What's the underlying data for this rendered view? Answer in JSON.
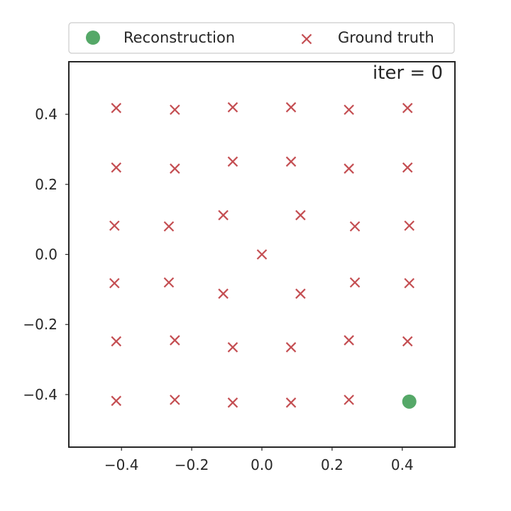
{
  "chart_data": {
    "type": "scatter",
    "title": "",
    "xlabel": "",
    "ylabel": "",
    "xlim": [
      -0.55,
      0.55
    ],
    "ylim": [
      -0.55,
      0.55
    ],
    "xticks": [
      -0.4,
      -0.2,
      0.0,
      0.2,
      0.4
    ],
    "yticks": [
      -0.4,
      -0.2,
      0.0,
      0.2,
      0.4
    ],
    "xtick_labels": [
      "−0.4",
      "−0.2",
      "0.0",
      "0.2",
      "0.4"
    ],
    "ytick_labels": [
      "−0.4",
      "−0.2",
      "0.0",
      "0.2",
      "0.4"
    ],
    "grid": false,
    "legend": {
      "placement": "top, above plot",
      "columns": 2
    },
    "annotation": "iter = 0",
    "series": [
      {
        "name": "Reconstruction",
        "marker": "circle",
        "color": "#55a868",
        "points": [
          [
            0.42,
            -0.42
          ]
        ]
      },
      {
        "name": "Ground truth",
        "marker": "x",
        "color": "#c44e52",
        "points": [
          [
            -0.415,
            0.418
          ],
          [
            -0.248,
            0.413
          ],
          [
            -0.083,
            0.42
          ],
          [
            0.083,
            0.42
          ],
          [
            0.248,
            0.413
          ],
          [
            0.415,
            0.418
          ],
          [
            -0.415,
            0.248
          ],
          [
            -0.248,
            0.245
          ],
          [
            -0.083,
            0.265
          ],
          [
            0.083,
            0.265
          ],
          [
            0.248,
            0.245
          ],
          [
            0.415,
            0.248
          ],
          [
            -0.42,
            0.082
          ],
          [
            -0.265,
            0.08
          ],
          [
            -0.11,
            0.112
          ],
          [
            0.11,
            0.112
          ],
          [
            0.265,
            0.08
          ],
          [
            0.42,
            0.082
          ],
          [
            0.0,
            0.0
          ],
          [
            -0.42,
            -0.082
          ],
          [
            -0.265,
            -0.08
          ],
          [
            -0.11,
            -0.112
          ],
          [
            0.11,
            -0.112
          ],
          [
            0.265,
            -0.08
          ],
          [
            0.42,
            -0.082
          ],
          [
            -0.415,
            -0.248
          ],
          [
            -0.248,
            -0.245
          ],
          [
            -0.083,
            -0.265
          ],
          [
            0.083,
            -0.265
          ],
          [
            0.248,
            -0.245
          ],
          [
            0.415,
            -0.248
          ],
          [
            -0.415,
            -0.418
          ],
          [
            -0.248,
            -0.415
          ],
          [
            -0.083,
            -0.423
          ],
          [
            0.083,
            -0.423
          ],
          [
            0.248,
            -0.415
          ]
        ]
      }
    ]
  }
}
